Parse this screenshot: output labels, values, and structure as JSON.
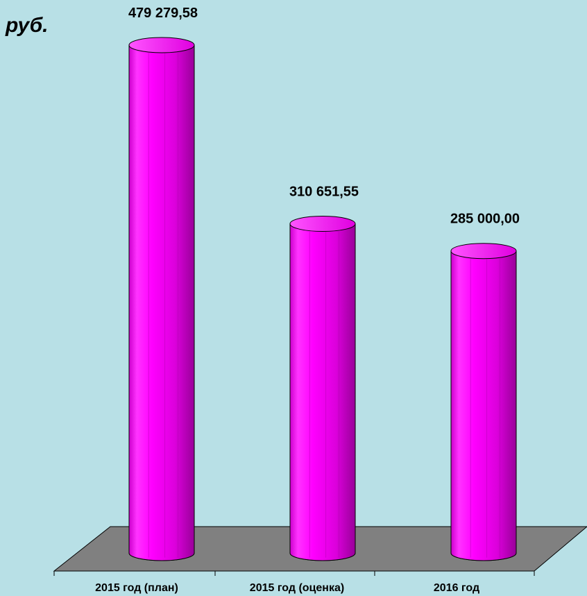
{
  "chart_data": {
    "type": "bar",
    "style": "3d-cylinder",
    "unit": "руб.",
    "categories": [
      "2015 год (план)",
      "2015 год (оценка)",
      "2016 год"
    ],
    "values": [
      479279.58,
      310651.55,
      285000.0
    ],
    "value_labels": [
      "479 279,58",
      "310 651,55",
      "285 000,00"
    ],
    "ylim": [
      0,
      500000
    ],
    "grid": false,
    "legend": "none",
    "colors": {
      "background": "#b8e0e6",
      "bar": "#ee00ee",
      "bar_light": "#ff66ff",
      "bar_dark": "#990099",
      "floor": "#808080",
      "text": "#000000"
    }
  }
}
